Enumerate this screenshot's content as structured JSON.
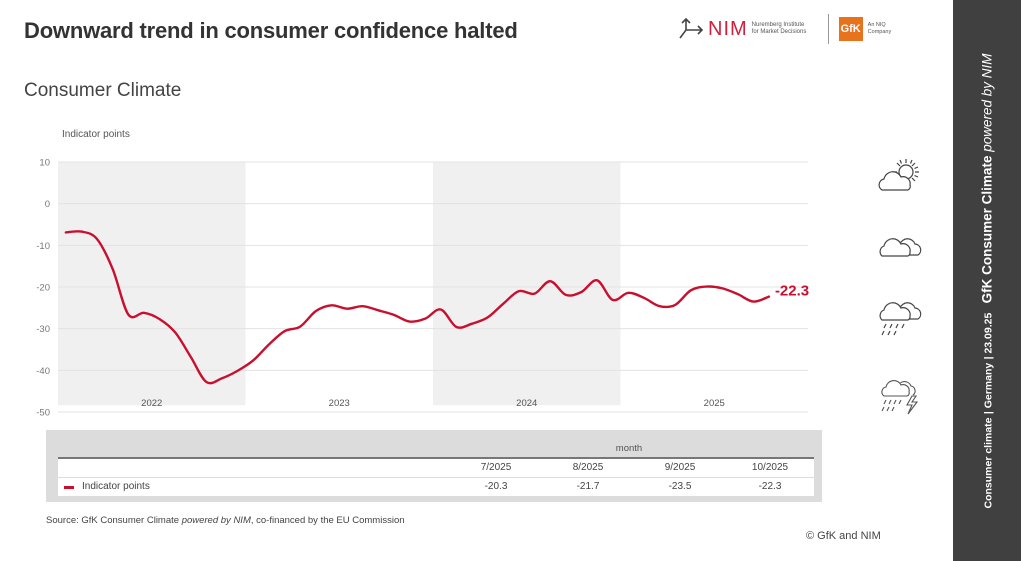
{
  "header": {
    "title": "Downward trend in consumer confidence halted",
    "subtitle": "Consumer Climate"
  },
  "logos": {
    "nim_name": "NIM",
    "nim_subtitle_line1": "Nuremberg Institute",
    "nim_subtitle_line2": "for Market Decisions",
    "gfk_name": "GfK",
    "gfk_subtitle_line1": "An NIQ",
    "gfk_subtitle_line2": "Company",
    "nim_color": "#d21f3c",
    "gfk_color": "#e8731f"
  },
  "sidebar": {
    "topic": "Consumer climate",
    "country": "Germany",
    "date": "23.09.25",
    "brand": "GfK Consumer Climate",
    "brand_suffix": "powered by NIM"
  },
  "weather_icons": [
    "sun-behind-cloud-icon",
    "cloud-icon",
    "rain-cloud-icon",
    "thunderstorm-icon"
  ],
  "chart_data": {
    "type": "line",
    "title": "Consumer Climate",
    "ylabel": "Indicator points",
    "xlabel": "",
    "ylim": [
      -50,
      10
    ],
    "yticks": [
      10,
      0,
      -10,
      -20,
      -30,
      -40,
      -50
    ],
    "grid": true,
    "year_labels": [
      "2022",
      "2023",
      "2024",
      "2025"
    ],
    "shaded_years": [
      "2022",
      "2024"
    ],
    "start": "1/2022",
    "end": "10/2025",
    "series": [
      {
        "name": "Indicator points",
        "color": "#c8102e",
        "last_value_label": "-22.3",
        "values": [
          -6.9,
          -6.7,
          -8.5,
          -15.7,
          -26.6,
          -26.2,
          -27.7,
          -30.9,
          -36.8,
          -42.8,
          -41.9,
          -40.1,
          -37.6,
          -33.8,
          -30.6,
          -29.5,
          -25.8,
          -24.4,
          -25.2,
          -24.6,
          -25.6,
          -26.7,
          -28.3,
          -27.6,
          -25.4,
          -29.6,
          -28.8,
          -27.3,
          -24.0,
          -21.0,
          -21.6,
          -18.6,
          -21.9,
          -21.2,
          -18.4,
          -23.1,
          -21.4,
          -22.6,
          -24.6,
          -24.3,
          -20.8,
          -19.9,
          -20.3,
          -21.7,
          -23.5,
          -22.3
        ]
      }
    ]
  },
  "table": {
    "group_header": "month",
    "columns": [
      "7/2025",
      "8/2025",
      "9/2025",
      "10/2025"
    ],
    "rows": [
      {
        "label": "Indicator points",
        "values": [
          "-20.3",
          "-21.7",
          "-23.5",
          "-22.3"
        ]
      }
    ]
  },
  "footer": {
    "source_prefix": "Source: GfK Consumer Climate ",
    "source_italic": "powered by NIM",
    "source_suffix": ", co-financed by the EU Commission",
    "copyright": "© GfK and NIM"
  }
}
